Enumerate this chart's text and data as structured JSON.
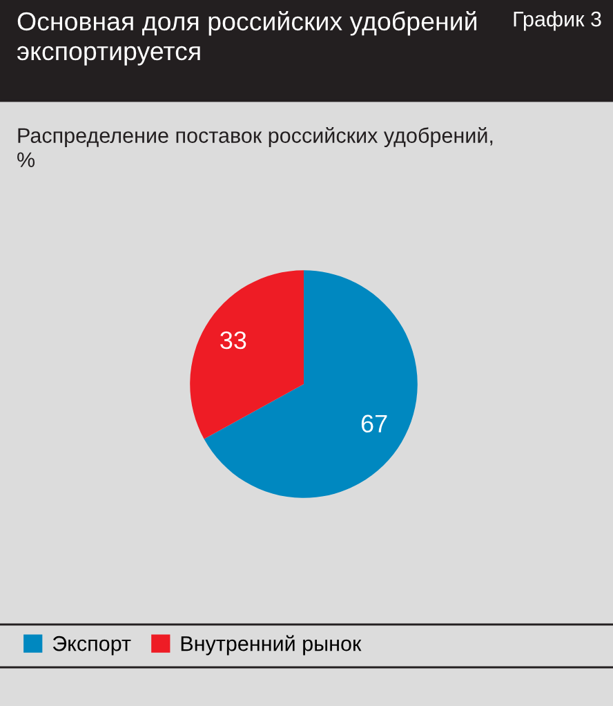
{
  "chart_data": {
    "type": "pie",
    "title": "Основная доля российских удобрений\nэкспортируется",
    "subtitle": "Распределение поставок российских удобрений,\n%",
    "annotations": [
      "График 3"
    ],
    "categories": [
      "Экспорт",
      "Внутренний рынок"
    ],
    "values": [
      67,
      33
    ],
    "colors": [
      "#0088c0",
      "#ee1c25"
    ],
    "data_labels": true,
    "legend": "bottom left"
  }
}
